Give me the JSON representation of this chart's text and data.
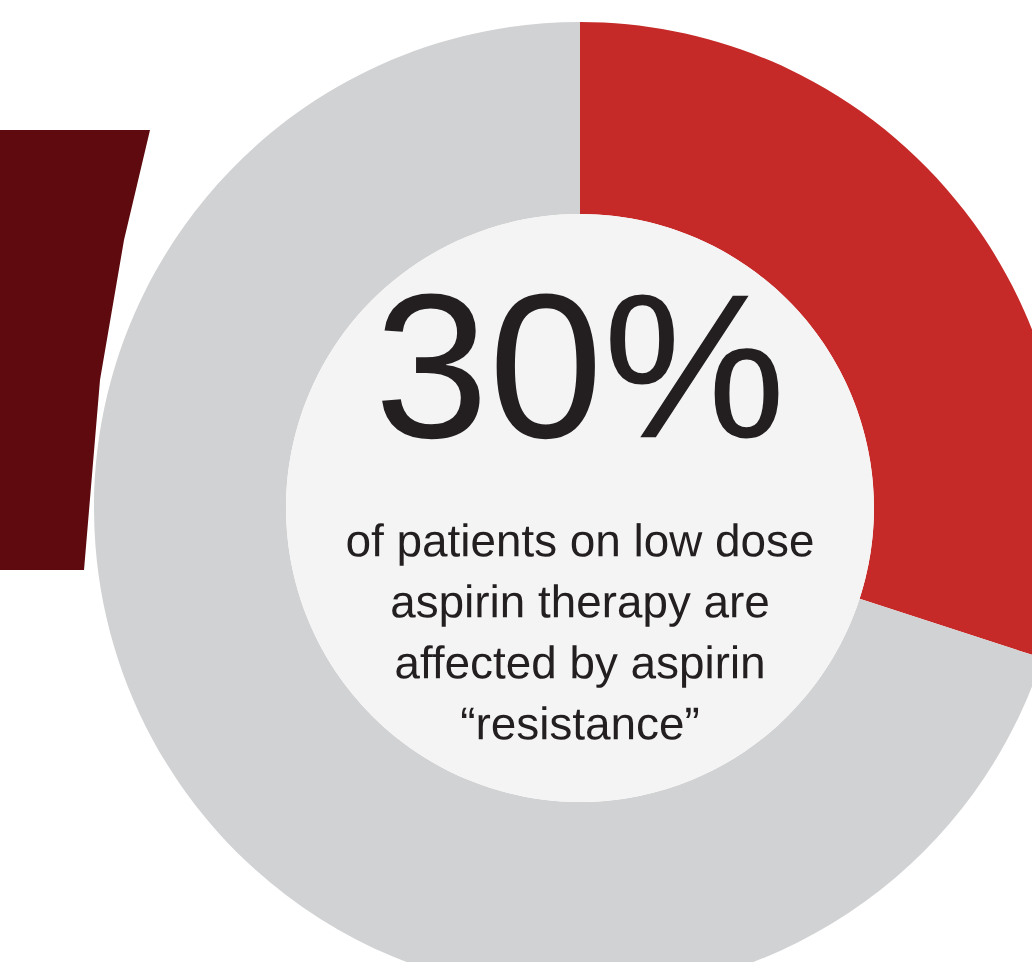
{
  "chart_data": {
    "type": "donut",
    "categories": [
      null,
      null
    ],
    "values": [
      30,
      70
    ],
    "colors": [
      "#c62a28",
      "#d1d2d4"
    ],
    "annotations": [
      "30%",
      "of patients on low dose\naspirin therapy are\naffected by aspirin\n“resistance”"
    ]
  }
}
